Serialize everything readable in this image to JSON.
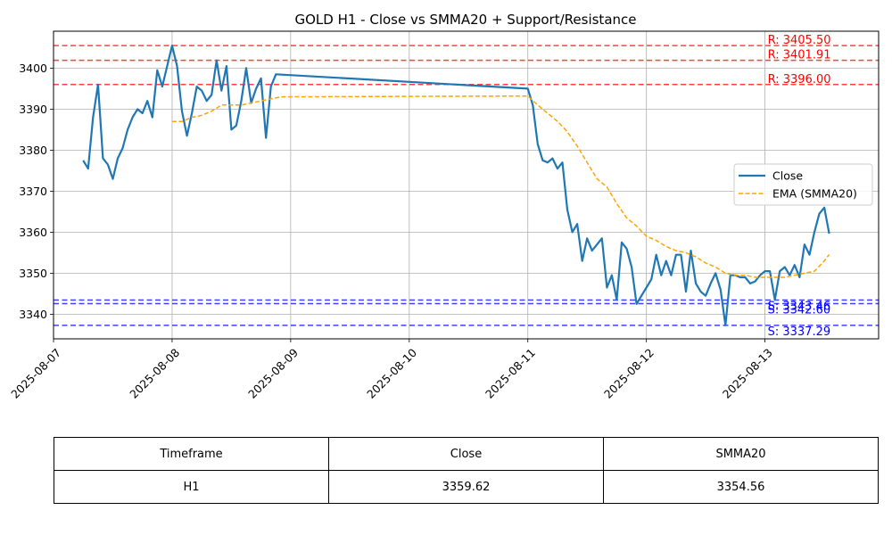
{
  "chart_data": {
    "type": "line",
    "title": "GOLD H1 - Close vs SMMA20 + Support/Resistance",
    "xlabel": "",
    "ylabel": "",
    "x_range": [
      "2025-08-07T00:00",
      "2025-08-13T23:00"
    ],
    "ylim": [
      3334,
      3409
    ],
    "x_ticks": [
      "2025-08-07",
      "2025-08-08",
      "2025-08-09",
      "2025-08-10",
      "2025-08-11",
      "2025-08-12",
      "2025-08-13"
    ],
    "y_ticks": [
      3340,
      3350,
      3360,
      3370,
      3380,
      3390,
      3400
    ],
    "grid": true,
    "legend_position": "center-right",
    "series": [
      {
        "name": "Close",
        "color": "#1f77b4",
        "style": "solid",
        "points": [
          [
            "2025-08-07T06:00",
            3377.5
          ],
          [
            "2025-08-07T07:00",
            3375.5
          ],
          [
            "2025-08-07T08:00",
            3388.0
          ],
          [
            "2025-08-07T09:00",
            3396.0
          ],
          [
            "2025-08-07T10:00",
            3378.0
          ],
          [
            "2025-08-07T11:00",
            3376.5
          ],
          [
            "2025-08-07T12:00",
            3373.0
          ],
          [
            "2025-08-07T13:00",
            3378.0
          ],
          [
            "2025-08-07T14:00",
            3380.5
          ],
          [
            "2025-08-07T15:00",
            3385.0
          ],
          [
            "2025-08-07T16:00",
            3388.0
          ],
          [
            "2025-08-07T17:00",
            3390.0
          ],
          [
            "2025-08-07T18:00",
            3389.0
          ],
          [
            "2025-08-07T19:00",
            3392.0
          ],
          [
            "2025-08-07T20:00",
            3388.0
          ],
          [
            "2025-08-07T21:00",
            3399.5
          ],
          [
            "2025-08-07T22:00",
            3395.5
          ],
          [
            "2025-08-07T23:00",
            3400.5
          ],
          [
            "2025-08-08T00:00",
            3405.5
          ],
          [
            "2025-08-08T01:00",
            3400.5
          ],
          [
            "2025-08-08T02:00",
            3389.5
          ],
          [
            "2025-08-08T03:00",
            3383.5
          ],
          [
            "2025-08-08T04:00",
            3389.0
          ],
          [
            "2025-08-08T05:00",
            3395.5
          ],
          [
            "2025-08-08T06:00",
            3394.5
          ],
          [
            "2025-08-08T07:00",
            3392.0
          ],
          [
            "2025-08-08T08:00",
            3393.5
          ],
          [
            "2025-08-08T09:00",
            3401.9
          ],
          [
            "2025-08-08T10:00",
            3394.5
          ],
          [
            "2025-08-08T11:00",
            3400.5
          ],
          [
            "2025-08-08T12:00",
            3385.0
          ],
          [
            "2025-08-08T13:00",
            3386.0
          ],
          [
            "2025-08-08T14:00",
            3392.0
          ],
          [
            "2025-08-08T15:00",
            3400.0
          ],
          [
            "2025-08-08T16:00",
            3391.5
          ],
          [
            "2025-08-08T17:00",
            3395.0
          ],
          [
            "2025-08-08T18:00",
            3397.5
          ],
          [
            "2025-08-08T19:00",
            3383.0
          ],
          [
            "2025-08-08T20:00",
            3395.5
          ],
          [
            "2025-08-08T21:00",
            3398.5
          ],
          [
            "2025-08-11T00:00",
            3395.0
          ],
          [
            "2025-08-11T01:00",
            3391.0
          ],
          [
            "2025-08-11T02:00",
            3381.5
          ],
          [
            "2025-08-11T03:00",
            3377.5
          ],
          [
            "2025-08-11T04:00",
            3377.0
          ],
          [
            "2025-08-11T05:00",
            3378.0
          ],
          [
            "2025-08-11T06:00",
            3375.5
          ],
          [
            "2025-08-11T07:00",
            3377.0
          ],
          [
            "2025-08-11T08:00",
            3365.5
          ],
          [
            "2025-08-11T09:00",
            3360.0
          ],
          [
            "2025-08-11T10:00",
            3362.0
          ],
          [
            "2025-08-11T11:00",
            3353.0
          ],
          [
            "2025-08-11T12:00",
            3358.5
          ],
          [
            "2025-08-11T13:00",
            3355.5
          ],
          [
            "2025-08-11T14:00",
            3357.0
          ],
          [
            "2025-08-11T15:00",
            3358.5
          ],
          [
            "2025-08-11T16:00",
            3346.5
          ],
          [
            "2025-08-11T17:00",
            3349.5
          ],
          [
            "2025-08-11T18:00",
            3343.5
          ],
          [
            "2025-08-11T19:00",
            3357.5
          ],
          [
            "2025-08-11T20:00",
            3356.0
          ],
          [
            "2025-08-11T21:00",
            3351.5
          ],
          [
            "2025-08-11T22:00",
            3342.5
          ],
          [
            "2025-08-11T23:00",
            3344.5
          ],
          [
            "2025-08-12T00:00",
            3346.5
          ],
          [
            "2025-08-12T01:00",
            3348.5
          ],
          [
            "2025-08-12T02:00",
            3354.5
          ],
          [
            "2025-08-12T03:00",
            3349.5
          ],
          [
            "2025-08-12T04:00",
            3353.0
          ],
          [
            "2025-08-12T05:00",
            3349.5
          ],
          [
            "2025-08-12T06:00",
            3354.5
          ],
          [
            "2025-08-12T07:00",
            3354.5
          ],
          [
            "2025-08-12T08:00",
            3345.5
          ],
          [
            "2025-08-12T09:00",
            3355.5
          ],
          [
            "2025-08-12T10:00",
            3347.5
          ],
          [
            "2025-08-12T11:00",
            3345.5
          ],
          [
            "2025-08-12T12:00",
            3344.5
          ],
          [
            "2025-08-12T13:00",
            3347.5
          ],
          [
            "2025-08-12T14:00",
            3350.0
          ],
          [
            "2025-08-12T15:00",
            3346.0
          ],
          [
            "2025-08-12T16:00",
            3337.3
          ],
          [
            "2025-08-12T17:00",
            3349.5
          ],
          [
            "2025-08-12T18:00",
            3349.5
          ],
          [
            "2025-08-12T19:00",
            3349.0
          ],
          [
            "2025-08-12T20:00",
            3349.0
          ],
          [
            "2025-08-12T21:00",
            3347.5
          ],
          [
            "2025-08-12T22:00",
            3348.0
          ],
          [
            "2025-08-12T23:00",
            3349.5
          ],
          [
            "2025-08-13T00:00",
            3350.5
          ],
          [
            "2025-08-13T01:00",
            3350.5
          ],
          [
            "2025-08-13T02:00",
            3343.5
          ],
          [
            "2025-08-13T03:00",
            3350.5
          ],
          [
            "2025-08-13T04:00",
            3351.5
          ],
          [
            "2025-08-13T05:00",
            3349.5
          ],
          [
            "2025-08-13T06:00",
            3352.0
          ],
          [
            "2025-08-13T07:00",
            3349.0
          ],
          [
            "2025-08-13T08:00",
            3357.0
          ],
          [
            "2025-08-13T09:00",
            3354.5
          ],
          [
            "2025-08-13T10:00",
            3360.0
          ],
          [
            "2025-08-13T11:00",
            3364.5
          ],
          [
            "2025-08-13T12:00",
            3366.0
          ],
          [
            "2025-08-13T13:00",
            3359.62
          ]
        ]
      },
      {
        "name": "EMA (SMMA20)",
        "color": "#ffa500",
        "style": "dashed",
        "points": [
          [
            "2025-08-08T00:00",
            3387.0
          ],
          [
            "2025-08-08T02:00",
            3387.0
          ],
          [
            "2025-08-08T04:00",
            3388.0
          ],
          [
            "2025-08-08T06:00",
            3388.5
          ],
          [
            "2025-08-08T08:00",
            3389.5
          ],
          [
            "2025-08-08T10:00",
            3391.0
          ],
          [
            "2025-08-08T12:00",
            3391.0
          ],
          [
            "2025-08-08T14:00",
            3391.0
          ],
          [
            "2025-08-08T16:00",
            3391.5
          ],
          [
            "2025-08-08T18:00",
            3392.0
          ],
          [
            "2025-08-08T20:00",
            3392.5
          ],
          [
            "2025-08-08T22:00",
            3393.0
          ],
          [
            "2025-08-11T00:00",
            3393.2
          ],
          [
            "2025-08-11T02:00",
            3391.0
          ],
          [
            "2025-08-11T04:00",
            3389.0
          ],
          [
            "2025-08-11T06:00",
            3387.0
          ],
          [
            "2025-08-11T08:00",
            3384.5
          ],
          [
            "2025-08-11T10:00",
            3381.0
          ],
          [
            "2025-08-11T12:00",
            3377.0
          ],
          [
            "2025-08-11T14:00",
            3373.0
          ],
          [
            "2025-08-11T16:00",
            3371.0
          ],
          [
            "2025-08-11T18:00",
            3367.0
          ],
          [
            "2025-08-11T20:00",
            3363.5
          ],
          [
            "2025-08-11T22:00",
            3361.5
          ],
          [
            "2025-08-12T00:00",
            3359.0
          ],
          [
            "2025-08-12T02:00",
            3358.0
          ],
          [
            "2025-08-12T04:00",
            3356.5
          ],
          [
            "2025-08-12T06:00",
            3355.5
          ],
          [
            "2025-08-12T08:00",
            3355.0
          ],
          [
            "2025-08-12T10:00",
            3354.0
          ],
          [
            "2025-08-12T12:00",
            3352.5
          ],
          [
            "2025-08-12T14:00",
            3351.5
          ],
          [
            "2025-08-12T16:00",
            3350.0
          ],
          [
            "2025-08-12T18:00",
            3349.5
          ],
          [
            "2025-08-12T20:00",
            3349.5
          ],
          [
            "2025-08-12T22:00",
            3349.0
          ],
          [
            "2025-08-13T00:00",
            3349.0
          ],
          [
            "2025-08-13T02:00",
            3349.0
          ],
          [
            "2025-08-13T04:00",
            3349.0
          ],
          [
            "2025-08-13T06:00",
            3349.5
          ],
          [
            "2025-08-13T08:00",
            3350.0
          ],
          [
            "2025-08-13T10:00",
            3350.5
          ],
          [
            "2025-08-13T12:00",
            3353.0
          ],
          [
            "2025-08-13T13:00",
            3354.56
          ]
        ]
      }
    ],
    "resistance_levels": [
      {
        "label": "R: 3405.50",
        "value": 3405.5
      },
      {
        "label": "R: 3401.91",
        "value": 3401.91
      },
      {
        "label": "R: 3396.00",
        "value": 3396.0
      }
    ],
    "support_levels": [
      {
        "label": "S: 3343.46",
        "value": 3343.46
      },
      {
        "label": "S: 3342.60",
        "value": 3342.6
      },
      {
        "label": "S: 3337.29",
        "value": 3337.29
      }
    ],
    "resistance_color": "#ff0000",
    "support_color": "#0000ff"
  },
  "table": {
    "headers": [
      "Timeframe",
      "Close",
      "SMMA20"
    ],
    "rows": [
      [
        "H1",
        "3359.62",
        "3354.56"
      ]
    ]
  }
}
